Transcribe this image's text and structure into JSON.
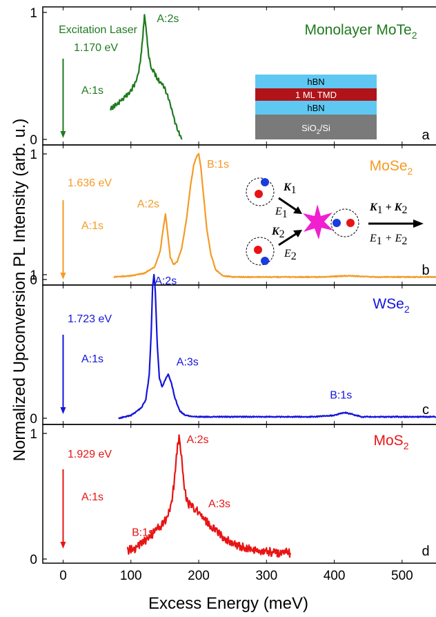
{
  "colors": {
    "green": "#1f7a1f",
    "orange": "#f59a25",
    "blue": "#1414dc",
    "red": "#e81414",
    "hbn": "#5ec8f2",
    "tmd": "#b01418",
    "substrate": "#7a7a7a",
    "star": "#f020d0",
    "electron": "#e81414",
    "hole": "#1a3cdc"
  },
  "figure": {
    "ylabel": "Normalized Upconversion PL Intensity (arb. u.)",
    "xlabel": "Excess Energy (meV)"
  },
  "inset_stack": {
    "layers": [
      "hBN",
      "1 ML TMD",
      "hBN",
      "SiO",
      "/Si"
    ],
    "subscript": "2"
  },
  "process_diagram": {
    "k1": "K",
    "k1_sub": "1",
    "e1": "E",
    "e1_sub": "1",
    "k2": "K",
    "k2_sub": "2",
    "e2": "E",
    "e2_sub": "2",
    "ksum": "K",
    "ksum_mid": "1",
    "ksum_plus": " + K",
    "ksum_end": "2",
    "esum": "E",
    "esum_mid": "1",
    "esum_plus": " + E",
    "esum_end": "2"
  },
  "chart_data": [
    {
      "type": "line",
      "panel": "a",
      "material": "Monolayer MoTe",
      "material_sub": "2",
      "color": "#1f7a1f",
      "laser_label": "Excitation Laser",
      "laser_energy": "1.170 eV",
      "arrow_label": "A:1s",
      "xlim": [
        -30,
        550
      ],
      "ylim": [
        0,
        1
      ],
      "yticks": [
        "0",
        "1"
      ],
      "annotations": [
        {
          "label": "A:2s",
          "x": 122,
          "y": 1.0
        }
      ],
      "series": [
        {
          "x": [
            70,
            80,
            90,
            100,
            105,
            110,
            114,
            117,
            120,
            123,
            126,
            130,
            135,
            140,
            145,
            150,
            155,
            160,
            165,
            170,
            175
          ],
          "values": [
            0.24,
            0.28,
            0.33,
            0.38,
            0.43,
            0.5,
            0.62,
            0.78,
            0.98,
            0.84,
            0.66,
            0.56,
            0.52,
            0.47,
            0.44,
            0.4,
            0.33,
            0.24,
            0.14,
            0.06,
            0.0
          ]
        }
      ]
    },
    {
      "type": "line",
      "panel": "b",
      "material": "MoSe",
      "material_sub": "2",
      "color": "#f59a25",
      "laser_energy": "1.636 eV",
      "arrow_label": "A:1s",
      "xlim": [
        -30,
        550
      ],
      "ylim": [
        0,
        1
      ],
      "yticks": [
        "0",
        "1"
      ],
      "annotations": [
        {
          "label": "A:2s",
          "x": 150,
          "y": 0.52
        },
        {
          "label": "B:1s",
          "x": 200,
          "y": 1.0
        }
      ],
      "series": [
        {
          "x": [
            75,
            100,
            120,
            135,
            143,
            148,
            151,
            154,
            158,
            163,
            168,
            175,
            182,
            188,
            193,
            197,
            200,
            203,
            207,
            212,
            218,
            225,
            235,
            250,
            280,
            320,
            380,
            420,
            460,
            500,
            550
          ],
          "values": [
            0.02,
            0.03,
            0.05,
            0.1,
            0.22,
            0.42,
            0.52,
            0.38,
            0.18,
            0.12,
            0.14,
            0.25,
            0.48,
            0.75,
            0.92,
            0.98,
            1.0,
            0.9,
            0.68,
            0.4,
            0.2,
            0.08,
            0.03,
            0.02,
            0.02,
            0.02,
            0.02,
            0.03,
            0.02,
            0.02,
            0.02
          ]
        }
      ]
    },
    {
      "type": "line",
      "panel": "c",
      "material": "WSe",
      "material_sub": "2",
      "color": "#1414dc",
      "laser_energy": "1.723 eV",
      "arrow_label": "A:1s",
      "xlim": [
        -30,
        550
      ],
      "ylim": [
        0,
        1
      ],
      "yticks": [
        "0",
        "1"
      ],
      "annotations": [
        {
          "label": "A:2s",
          "x": 133,
          "y": 1.0
        },
        {
          "label": "A:3s",
          "x": 157,
          "y": 0.31
        },
        {
          "label": "B:1s",
          "x": 420,
          "y": 0.05
        }
      ],
      "series": [
        {
          "x": [
            82,
            100,
            115,
            122,
            127,
            130,
            132,
            134,
            136,
            139,
            142,
            146,
            150,
            155,
            160,
            165,
            172,
            180,
            195,
            220,
            260,
            320,
            370,
            400,
            415,
            425,
            440,
            470,
            550
          ],
          "values": [
            0.0,
            0.02,
            0.07,
            0.13,
            0.3,
            0.6,
            0.92,
            1.0,
            0.88,
            0.5,
            0.28,
            0.22,
            0.26,
            0.31,
            0.24,
            0.14,
            0.05,
            0.02,
            0.01,
            0.01,
            0.01,
            0.01,
            0.01,
            0.02,
            0.04,
            0.03,
            0.01,
            0.01,
            0.01
          ]
        }
      ]
    },
    {
      "type": "line",
      "panel": "d",
      "material": "MoS",
      "material_sub": "2",
      "color": "#e81414",
      "laser_energy": "1.929 eV",
      "arrow_label": "A:1s",
      "xlim": [
        -30,
        550
      ],
      "ylim": [
        0,
        1
      ],
      "yticks": [
        "0",
        "1"
      ],
      "annotations": [
        {
          "label": "B:1s",
          "x": 140,
          "y": 0.35
        },
        {
          "label": "A:2s",
          "x": 172,
          "y": 1.0
        },
        {
          "label": "A:3s",
          "x": 200,
          "y": 0.4
        }
      ],
      "series": [
        {
          "x": [
            95,
            105,
            115,
            125,
            135,
            145,
            150,
            155,
            160,
            164,
            168,
            171,
            174,
            178,
            182,
            188,
            195,
            202,
            210,
            220,
            232,
            245,
            260,
            280,
            300,
            320,
            335
          ],
          "values": [
            0.07,
            0.08,
            0.12,
            0.16,
            0.22,
            0.27,
            0.3,
            0.36,
            0.45,
            0.62,
            0.85,
            0.98,
            0.86,
            0.6,
            0.46,
            0.42,
            0.4,
            0.36,
            0.31,
            0.25,
            0.19,
            0.14,
            0.1,
            0.07,
            0.06,
            0.05,
            0.05
          ]
        }
      ]
    }
  ]
}
